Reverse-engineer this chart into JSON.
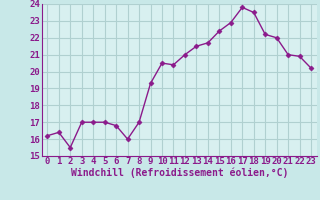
{
  "x": [
    0,
    1,
    2,
    3,
    4,
    5,
    6,
    7,
    8,
    9,
    10,
    11,
    12,
    13,
    14,
    15,
    16,
    17,
    18,
    19,
    20,
    21,
    22,
    23
  ],
  "y": [
    16.2,
    16.4,
    15.5,
    17.0,
    17.0,
    17.0,
    16.8,
    16.0,
    17.0,
    19.3,
    20.5,
    20.4,
    21.0,
    21.5,
    21.7,
    22.4,
    22.9,
    23.8,
    23.5,
    22.2,
    22.0,
    21.0,
    20.9,
    20.2
  ],
  "line_color": "#8b1a8b",
  "marker": "D",
  "markersize": 2.5,
  "linewidth": 1.0,
  "bg_color": "#c8e8e8",
  "grid_color": "#b0d0d0",
  "xlabel": "Windchill (Refroidissement éolien,°C)",
  "ylim": [
    15,
    24
  ],
  "xlim": [
    -0.5,
    23.5
  ],
  "yticks": [
    15,
    16,
    17,
    18,
    19,
    20,
    21,
    22,
    23,
    24
  ],
  "xticks": [
    0,
    1,
    2,
    3,
    4,
    5,
    6,
    7,
    8,
    9,
    10,
    11,
    12,
    13,
    14,
    15,
    16,
    17,
    18,
    19,
    20,
    21,
    22,
    23
  ],
  "tick_color": "#8b1a8b",
  "label_color": "#8b1a8b",
  "xlabel_fontsize": 7.0,
  "tick_fontsize": 6.5,
  "grid_linewidth": 0.8,
  "plot_bg_color": "#d8f0f0"
}
